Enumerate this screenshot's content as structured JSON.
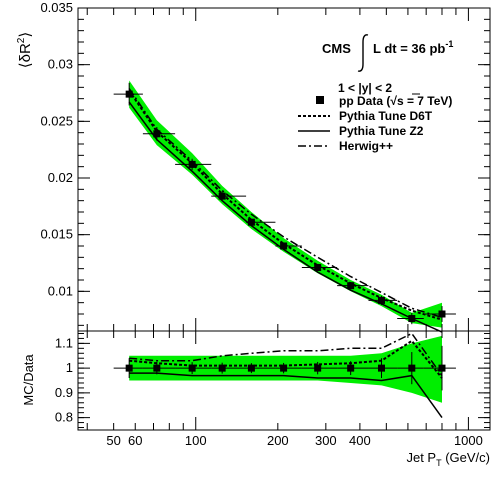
{
  "chart_data": [
    {
      "type": "line",
      "panel": "main",
      "ylabel_main": "⟨δR",
      "ylabel_sup": "2",
      "ylabel_close": "⟩",
      "ylim": [
        0.0065,
        0.035
      ],
      "yticks": [
        0.01,
        0.015,
        0.02,
        0.025,
        0.03,
        0.035
      ],
      "ytick_labels": [
        "0.01",
        "0.015",
        "0.02",
        "0.025",
        "0.03",
        "0.035"
      ],
      "annotation": {
        "experiment": "CMS",
        "lumi_prefix": "L dt = 36 pb",
        "lumi_sup": "-1",
        "rapidity": "1 < |y| < 2"
      },
      "legend_position": "top-right",
      "legend": [
        {
          "key": "data",
          "label_pre": "pp Data (",
          "label_sqrt": "s = 7 TeV)"
        },
        {
          "key": "d6t",
          "label": "Pythia Tune D6T",
          "style": "dashed"
        },
        {
          "key": "z2",
          "label": "Pythia Tune Z2",
          "style": "solid"
        },
        {
          "key": "herwig",
          "label": "Herwig++",
          "style": "dashdot"
        }
      ],
      "band_color": "#00ee00",
      "x": [
        57,
        72,
        97,
        125,
        160,
        210,
        280,
        370,
        480,
        620,
        800
      ],
      "x_err": [
        [
          50,
          64
        ],
        [
          64,
          84
        ],
        [
          84,
          114
        ],
        [
          114,
          153
        ],
        [
          153,
          196
        ],
        [
          196,
          245
        ],
        [
          245,
          330
        ],
        [
          330,
          430
        ],
        [
          430,
          548
        ],
        [
          548,
          686
        ],
        [
          686,
          900
        ]
      ],
      "series": [
        {
          "name": "pp Data (√s = 7 TeV)",
          "values": [
            0.0274,
            0.0239,
            0.0212,
            0.0184,
            0.0161,
            0.014,
            0.0121,
            0.0105,
            0.0092,
            0.0076,
            0.008
          ],
          "errors": [
            0.001,
            0.0006,
            0.0005,
            0.0004,
            0.0003,
            0.0003,
            0.0003,
            0.0003,
            0.0004,
            0.0005,
            0.0007
          ]
        },
        {
          "name": "Pythia Tune D6T",
          "values": [
            0.0277,
            0.0241,
            0.0213,
            0.0186,
            0.0163,
            0.0142,
            0.0123,
            0.0107,
            0.0094,
            0.0083,
            0.0075
          ]
        },
        {
          "name": "Pythia Tune Z2",
          "values": [
            0.0267,
            0.0234,
            0.0206,
            0.018,
            0.0158,
            0.0137,
            0.0117,
            0.0101,
            0.0089,
            0.0076,
            0.0064
          ]
        },
        {
          "name": "Herwig++",
          "values": [
            0.0279,
            0.0243,
            0.0215,
            0.0189,
            0.0168,
            0.0148,
            0.013,
            0.0113,
            0.0099,
            0.0085,
            0.0077
          ]
        }
      ],
      "band": {
        "lower": [
          0.0262,
          0.0229,
          0.0203,
          0.0177,
          0.0155,
          0.0135,
          0.0116,
          0.01,
          0.0087,
          0.0072,
          0.0068
        ],
        "upper": [
          0.0286,
          0.0251,
          0.0222,
          0.0193,
          0.017,
          0.0147,
          0.0127,
          0.011,
          0.0097,
          0.0081,
          0.009
        ]
      }
    },
    {
      "type": "line",
      "panel": "ratio",
      "ylabel": "MC/Data",
      "xlabel_main": "Jet P",
      "xlabel_sub": "T",
      "xlabel_unit": " (GeV/c)",
      "xlim": [
        37,
        1200
      ],
      "log_x": true,
      "xticks": [
        50,
        60,
        100,
        200,
        300,
        400,
        1000
      ],
      "xtick_labels": [
        "50",
        "60",
        "100",
        "200",
        "300",
        "400",
        "1000"
      ],
      "ylim": [
        0.75,
        1.15
      ],
      "yticks": [
        0.8,
        0.9,
        1.0,
        1.1
      ],
      "ytick_labels": [
        "0.8",
        "0.9",
        "1",
        "1.1"
      ],
      "x": [
        57,
        72,
        97,
        125,
        160,
        210,
        280,
        370,
        480,
        620,
        800
      ],
      "series": [
        {
          "name": "Data",
          "values": [
            1,
            1,
            1,
            1,
            1,
            1,
            1,
            1,
            1,
            1,
            1
          ],
          "errors": [
            0.04,
            0.025,
            0.024,
            0.022,
            0.02,
            0.021,
            0.025,
            0.028,
            0.04,
            0.065,
            0.09
          ]
        },
        {
          "name": "Pythia Tune D6T",
          "values": [
            1.03,
            1.02,
            1.01,
            1.01,
            1.01,
            1.01,
            1.015,
            1.02,
            1.03,
            1.11,
            0.96
          ]
        },
        {
          "name": "Pythia Tune Z2",
          "values": [
            0.98,
            0.98,
            0.97,
            0.97,
            0.97,
            0.97,
            0.96,
            0.96,
            0.95,
            0.97,
            0.8
          ]
        },
        {
          "name": "Herwig++",
          "values": [
            1.04,
            1.03,
            1.03,
            1.05,
            1.06,
            1.07,
            1.07,
            1.08,
            1.08,
            1.14,
            0.97
          ]
        }
      ],
      "band": {
        "lower": [
          0.95,
          0.95,
          0.95,
          0.95,
          0.95,
          0.95,
          0.95,
          0.94,
          0.93,
          0.9,
          0.86
        ],
        "upper": [
          1.05,
          1.05,
          1.05,
          1.05,
          1.05,
          1.05,
          1.05,
          1.05,
          1.06,
          1.1,
          1.13
        ]
      }
    }
  ]
}
